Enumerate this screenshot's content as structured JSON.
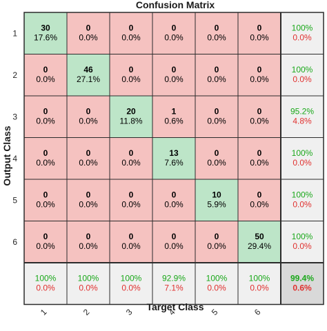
{
  "chart_data": {
    "type": "heatmap",
    "title": "Confusion Matrix",
    "xlabel": "Target Class",
    "ylabel": "Output Class",
    "x_tick_labels": [
      "1",
      "2",
      "3",
      "4",
      "5",
      "6"
    ],
    "y_tick_labels": [
      "1",
      "2",
      "3",
      "4",
      "5",
      "6"
    ],
    "counts": [
      [
        30,
        0,
        0,
        0,
        0,
        0
      ],
      [
        0,
        46,
        0,
        0,
        0,
        0
      ],
      [
        0,
        0,
        20,
        1,
        0,
        0
      ],
      [
        0,
        0,
        0,
        13,
        0,
        0
      ],
      [
        0,
        0,
        0,
        0,
        10,
        0
      ],
      [
        0,
        0,
        0,
        0,
        0,
        50
      ]
    ],
    "percents": [
      [
        "17.6%",
        "0.0%",
        "0.0%",
        "0.0%",
        "0.0%",
        "0.0%"
      ],
      [
        "0.0%",
        "27.1%",
        "0.0%",
        "0.0%",
        "0.0%",
        "0.0%"
      ],
      [
        "0.0%",
        "0.0%",
        "11.8%",
        "0.6%",
        "0.0%",
        "0.0%"
      ],
      [
        "0.0%",
        "0.0%",
        "0.0%",
        "7.6%",
        "0.0%",
        "0.0%"
      ],
      [
        "0.0%",
        "0.0%",
        "0.0%",
        "0.0%",
        "5.9%",
        "0.0%"
      ],
      [
        "0.0%",
        "0.0%",
        "0.0%",
        "0.0%",
        "0.0%",
        "29.4%"
      ]
    ],
    "row_summary": [
      {
        "correct": "100%",
        "incorrect": "0.0%"
      },
      {
        "correct": "100%",
        "incorrect": "0.0%"
      },
      {
        "correct": "95.2%",
        "incorrect": "4.8%"
      },
      {
        "correct": "100%",
        "incorrect": "0.0%"
      },
      {
        "correct": "100%",
        "incorrect": "0.0%"
      },
      {
        "correct": "100%",
        "incorrect": "0.0%"
      }
    ],
    "col_summary": [
      {
        "correct": "100%",
        "incorrect": "0.0%"
      },
      {
        "correct": "100%",
        "incorrect": "0.0%"
      },
      {
        "correct": "100%",
        "incorrect": "0.0%"
      },
      {
        "correct": "92.9%",
        "incorrect": "7.1%"
      },
      {
        "correct": "100%",
        "incorrect": "0.0%"
      },
      {
        "correct": "100%",
        "incorrect": "0.0%"
      }
    ],
    "overall": {
      "correct": "99.4%",
      "incorrect": "0.6%"
    },
    "colors": {
      "diagonal": "#bde5c8",
      "off_diagonal": "#f5c2c0",
      "summary_bg": "#f0f0f0",
      "overall_bg": "#d9d9d9",
      "correct_text": "#1aa81a",
      "incorrect_text": "#e0302e",
      "cell_text": "#000000",
      "grid": "#2b2b2b"
    }
  }
}
